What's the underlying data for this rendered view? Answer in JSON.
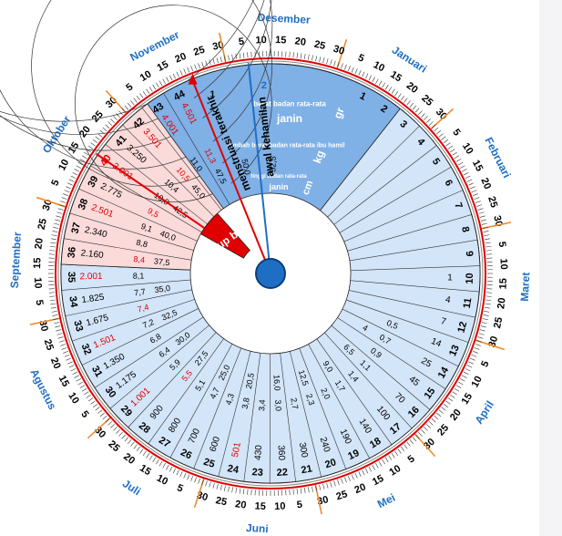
{
  "months": [
    "Januari",
    "Februari",
    "Maret",
    "April",
    "Mei",
    "Juni",
    "Juli",
    "Agustus",
    "September",
    "Oktober",
    "November",
    "Desember"
  ],
  "day_ticks": [
    "5",
    "10",
    "15",
    "20",
    "25",
    "30"
  ],
  "pointer_labels": {
    "lmp": "menstruasi terakhir",
    "conception": "awal kehamilan"
  },
  "pointer_markers": {
    "lmp": "1",
    "conception": "2"
  },
  "header_labels": {
    "avg_weight": "berat badan rata-rata",
    "janin": "janin",
    "gr": "gr",
    "gain": "tambah berat badan rata-rata ibu hamil",
    "kg": "kg",
    "height": "tinggi badan rata-rata",
    "cm": "cm"
  },
  "full_term_label": "Cukup bulan",
  "weeks": [
    "1",
    "2",
    "3",
    "4",
    "5",
    "6",
    "7",
    "8",
    "9",
    "10",
    "11",
    "12",
    "13",
    "14",
    "15",
    "16",
    "17",
    "18",
    "19",
    "20",
    "21",
    "22",
    "23",
    "24",
    "25",
    "26",
    "27",
    "28",
    "29",
    "30",
    "31",
    "32",
    "33",
    "34",
    "35",
    "36",
    "37",
    "38",
    "39",
    "40",
    "41",
    "42",
    "43",
    "44"
  ],
  "highlight_weeks": [
    "40"
  ],
  "fetal_weight": [
    "1",
    "4",
    "7",
    "14",
    "25",
    "45",
    "70",
    "100",
    "140",
    "190",
    "240",
    "300",
    "360",
    "430",
    "501",
    "600",
    "700",
    "800",
    "900",
    "1.001",
    "1.175",
    "1.350",
    "1.501",
    "1.675",
    "1.825",
    "2.001",
    "2.160",
    "2.340",
    "2.501",
    "2.775",
    "3.001",
    "3.250",
    "3.501",
    "4.001",
    "4.501"
  ],
  "fetal_weight_red": [
    "501",
    "1.001",
    "1.501",
    "2.001",
    "2.501",
    "3.001",
    "3.501",
    "4.001",
    "4.501"
  ],
  "weight_gain": [
    "0,5",
    "0,7",
    "0,9",
    "1,1",
    "1,4",
    "1,7",
    "2,0",
    "2,3",
    "2,7",
    "3,0",
    "3,4",
    "3,8",
    "4,3",
    "4,7",
    "5,1",
    "5,5",
    "5,9",
    "6,4",
    "6,8",
    "7,2",
    "7,4",
    "7,7",
    "8,1",
    "8,4",
    "8,8",
    "9,1",
    "9,5",
    "10,0",
    "10,4",
    "10,5",
    "11,0",
    "11,3"
  ],
  "weight_gain_red": [
    "5,5",
    "7,4",
    "8,4",
    "9,5",
    "10,5",
    "11,3"
  ],
  "fetal_length": [
    "4",
    "6,5",
    "9,0",
    "12,5",
    "16,0",
    "20,5",
    "25,0",
    "27,5",
    "30,0",
    "32,5",
    "35,0",
    "37,5",
    "40,0",
    "42,5",
    "45,0",
    "47,5",
    "50,0",
    "52,5"
  ],
  "colors": {
    "blue": "#1e6fc4",
    "light_blue": "#d3e5f8",
    "mid_blue": "#7fb0e6",
    "pink": "#fbdada",
    "red": "#e00000",
    "orange": "#ee8a2a"
  }
}
